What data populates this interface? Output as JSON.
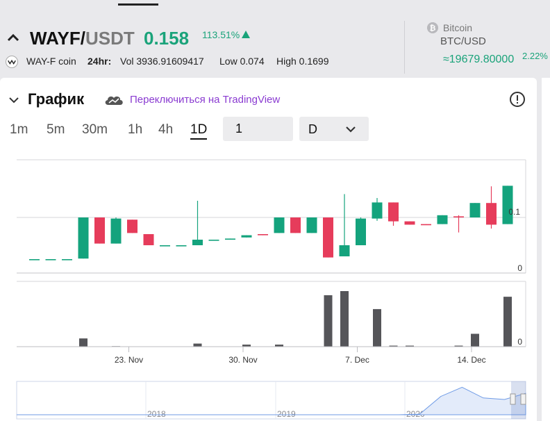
{
  "header": {
    "pair_base": "WAYF/",
    "pair_quote": "USDT",
    "price": "0.158",
    "change_pct": "113.51%",
    "coin_name": "WAY-F coin",
    "h24_label": "24hr:",
    "volume": "Vol 3936.91609417",
    "low": "Low 0.074",
    "high": "High 0.1699",
    "btc_name": "Bitcoin",
    "btc_pair": "BTC/USD",
    "btc_price": "≈19679.80000",
    "btc_pct": "2.22%"
  },
  "chart_panel": {
    "title": "График",
    "tradingview_link": "Переключиться на TradingView",
    "timeframes": [
      "1m",
      "5m",
      "30m",
      "1h",
      "4h",
      "1D"
    ],
    "active_timeframe": "1D",
    "interval_value": "1",
    "interval_unit": "D"
  },
  "colors": {
    "up": "#14a37d",
    "down": "#e63c5b",
    "accent": "#8a3bd1",
    "volume": "#555559"
  },
  "chart_data": [
    {
      "type": "candlestick",
      "title": "",
      "x_tick_labels": [
        "23. Nov",
        "30. Nov",
        "7. Dec",
        "14. Dec"
      ],
      "y_tick_labels": [
        "0.1",
        "0"
      ],
      "candles": [
        {
          "o": 0.025,
          "h": 0.025,
          "l": 0.025,
          "c": 0.025
        },
        {
          "o": 0.025,
          "h": 0.025,
          "l": 0.025,
          "c": 0.025
        },
        {
          "o": 0.025,
          "h": 0.025,
          "l": 0.025,
          "c": 0.025
        },
        {
          "o": 0.026,
          "h": 0.1,
          "l": 0.026,
          "c": 0.1
        },
        {
          "o": 0.1,
          "h": 0.1,
          "l": 0.053,
          "c": 0.053
        },
        {
          "o": 0.053,
          "h": 0.1,
          "l": 0.053,
          "c": 0.098
        },
        {
          "o": 0.096,
          "h": 0.096,
          "l": 0.072,
          "c": 0.072
        },
        {
          "o": 0.07,
          "h": 0.07,
          "l": 0.05,
          "c": 0.05
        },
        {
          "o": 0.05,
          "h": 0.05,
          "l": 0.05,
          "c": 0.05
        },
        {
          "o": 0.05,
          "h": 0.05,
          "l": 0.05,
          "c": 0.05
        },
        {
          "o": 0.05,
          "h": 0.13,
          "l": 0.05,
          "c": 0.06
        },
        {
          "o": 0.06,
          "h": 0.06,
          "l": 0.06,
          "c": 0.06
        },
        {
          "o": 0.06,
          "h": 0.062,
          "l": 0.06,
          "c": 0.062
        },
        {
          "o": 0.064,
          "h": 0.068,
          "l": 0.064,
          "c": 0.068
        },
        {
          "o": 0.07,
          "h": 0.07,
          "l": 0.068,
          "c": 0.068
        },
        {
          "o": 0.072,
          "h": 0.1,
          "l": 0.072,
          "c": 0.1
        },
        {
          "o": 0.1,
          "h": 0.1,
          "l": 0.072,
          "c": 0.072
        },
        {
          "o": 0.072,
          "h": 0.1,
          "l": 0.072,
          "c": 0.1
        },
        {
          "o": 0.1,
          "h": 0.1,
          "l": 0.028,
          "c": 0.028
        },
        {
          "o": 0.03,
          "h": 0.142,
          "l": 0.03,
          "c": 0.05
        },
        {
          "o": 0.05,
          "h": 0.1,
          "l": 0.05,
          "c": 0.098
        },
        {
          "o": 0.098,
          "h": 0.135,
          "l": 0.094,
          "c": 0.127
        },
        {
          "o": 0.127,
          "h": 0.127,
          "l": 0.085,
          "c": 0.093
        },
        {
          "o": 0.093,
          "h": 0.093,
          "l": 0.087,
          "c": 0.087
        },
        {
          "o": 0.088,
          "h": 0.088,
          "l": 0.087,
          "c": 0.087
        },
        {
          "o": 0.088,
          "h": 0.104,
          "l": 0.088,
          "c": 0.104
        },
        {
          "o": 0.102,
          "h": 0.104,
          "l": 0.073,
          "c": 0.1
        },
        {
          "o": 0.1,
          "h": 0.126,
          "l": 0.1,
          "c": 0.126
        },
        {
          "o": 0.126,
          "h": 0.156,
          "l": 0.08,
          "c": 0.087
        },
        {
          "o": 0.088,
          "h": 0.157,
          "l": 0.088,
          "c": 0.157
        }
      ],
      "volumes": [
        0,
        0,
        0,
        16,
        0,
        1,
        0,
        0,
        0,
        0,
        6,
        0,
        0,
        4,
        0,
        4,
        0,
        0,
        100,
        108,
        0,
        73,
        2,
        2,
        0,
        0,
        2,
        25,
        0,
        97
      ],
      "y_ticks": [
        0.1,
        0
      ]
    },
    {
      "type": "area",
      "title": "",
      "x_tick_labels": [
        "2018",
        "2019",
        "2020"
      ],
      "values": [
        0,
        0,
        0,
        0,
        0,
        0,
        0,
        0,
        0,
        0,
        0,
        0,
        0,
        0,
        0,
        0,
        0,
        0,
        0,
        0.02,
        0.6,
        0.9,
        0.55,
        0.5,
        0.7
      ]
    }
  ]
}
